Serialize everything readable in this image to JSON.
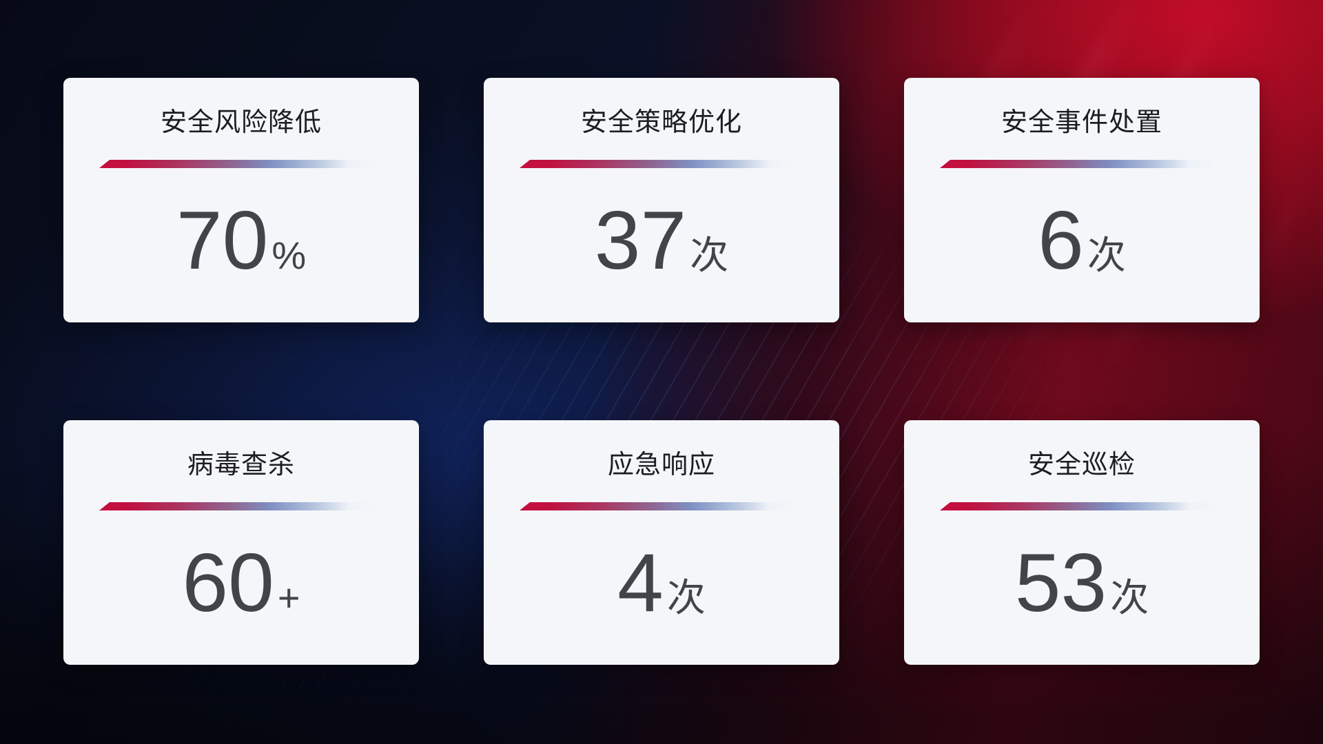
{
  "colors": {
    "accent_red": "#c60f3e",
    "accent_blue": "#7f8fc2",
    "card_background": "#f5f6f9",
    "title_text": "#1c1d22",
    "value_text": "#414449",
    "background_dark_navy": "#0a1126",
    "background_red": "#b80d28"
  },
  "cards": [
    {
      "label": "安全风险降低",
      "value": "70",
      "unit": "%"
    },
    {
      "label": "安全策略优化",
      "value": "37",
      "unit": "次"
    },
    {
      "label": "安全事件处置",
      "value": "6",
      "unit": "次"
    },
    {
      "label": "病毒查杀",
      "value": "60",
      "unit": "+"
    },
    {
      "label": "应急响应",
      "value": "4",
      "unit": "次"
    },
    {
      "label": "安全巡检",
      "value": "53",
      "unit": "次"
    }
  ]
}
